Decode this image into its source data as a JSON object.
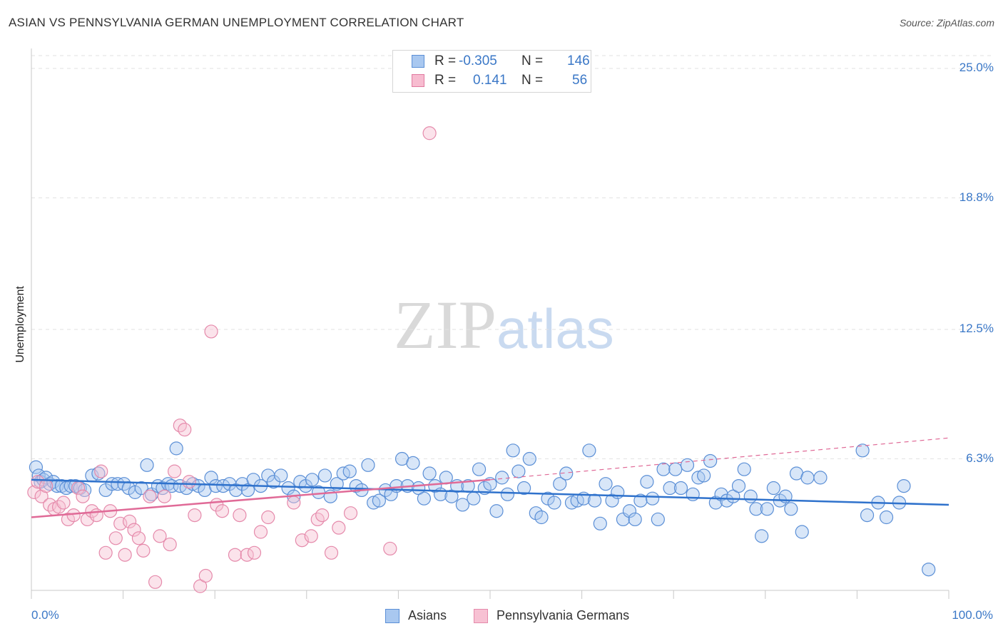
{
  "title": "ASIAN VS PENNSYLVANIA GERMAN UNEMPLOYMENT CORRELATION CHART",
  "source": "Source: ZipAtlas.com",
  "watermark": {
    "zip": "ZIP",
    "atlas": "atlas"
  },
  "legend_top": {
    "rows": [
      {
        "r_label": "R =",
        "r_value": "-0.305",
        "n_label": "N =",
        "n_value": "146",
        "color": "#a9c8f0",
        "border": "#5b8fd6"
      },
      {
        "r_label": "R =",
        "r_value": "0.141",
        "n_label": "N =",
        "n_value": "56",
        "color": "#f7bcd0",
        "border": "#e07aa0"
      }
    ]
  },
  "colors": {
    "asian_fill": "#a9c8f0",
    "asian_stroke": "#5b8fd6",
    "asian_line": "#2f72cc",
    "pg_fill": "#f7c1d3",
    "pg_stroke": "#e58aab",
    "pg_line": "#e06a97",
    "tick_text": "#3b78c7",
    "grid": "#e2e2e2"
  },
  "chart_data": {
    "type": "scatter",
    "title": "ASIAN VS PENNSYLVANIA GERMAN UNEMPLOYMENT CORRELATION CHART",
    "xlabel": "",
    "ylabel": "Unemployment",
    "xlim": [
      0,
      100
    ],
    "ylim": [
      0,
      26
    ],
    "x_ticks": [
      "0.0%",
      "100.0%"
    ],
    "y_ticks": [
      {
        "value": 6.3,
        "label": "6.3%"
      },
      {
        "value": 12.5,
        "label": "12.5%"
      },
      {
        "value": 18.8,
        "label": "18.8%"
      },
      {
        "value": 25.0,
        "label": "25.0%"
      }
    ],
    "grid": "horizontal dashed",
    "legend_position": "bottom-center",
    "series": [
      {
        "name": "Asians",
        "r": -0.305,
        "n": 146,
        "trend": {
          "x": [
            0,
            100
          ],
          "y": [
            5.3,
            4.1
          ]
        },
        "points": [
          [
            0.5,
            5.9
          ],
          [
            0.8,
            5.5
          ],
          [
            1.0,
            5.2
          ],
          [
            1.3,
            5.3
          ],
          [
            1.6,
            5.4
          ],
          [
            2.0,
            5.1
          ],
          [
            2.4,
            5.2
          ],
          [
            2.8,
            5.0
          ],
          [
            3.3,
            5.0
          ],
          [
            3.8,
            4.9
          ],
          [
            4.3,
            5.0
          ],
          [
            4.8,
            5.0
          ],
          [
            5.3,
            4.9
          ],
          [
            5.8,
            4.8
          ],
          [
            6.6,
            5.5
          ],
          [
            7.3,
            5.6
          ],
          [
            8.1,
            4.8
          ],
          [
            8.8,
            5.1
          ],
          [
            9.4,
            5.1
          ],
          [
            10.1,
            5.1
          ],
          [
            10.6,
            4.9
          ],
          [
            11.3,
            4.7
          ],
          [
            12.0,
            4.9
          ],
          [
            12.6,
            6.0
          ],
          [
            13.1,
            4.6
          ],
          [
            13.8,
            5.0
          ],
          [
            14.3,
            4.9
          ],
          [
            14.9,
            5.1
          ],
          [
            15.3,
            5.0
          ],
          [
            15.8,
            6.8
          ],
          [
            16.2,
            5.0
          ],
          [
            16.9,
            4.9
          ],
          [
            17.6,
            5.1
          ],
          [
            18.2,
            5.0
          ],
          [
            18.9,
            4.8
          ],
          [
            19.6,
            5.4
          ],
          [
            20.1,
            5.0
          ],
          [
            20.9,
            5.0
          ],
          [
            21.6,
            5.1
          ],
          [
            22.3,
            4.8
          ],
          [
            23.0,
            5.1
          ],
          [
            23.6,
            4.8
          ],
          [
            24.2,
            5.3
          ],
          [
            25.0,
            5.0
          ],
          [
            25.8,
            5.5
          ],
          [
            26.4,
            5.2
          ],
          [
            27.2,
            5.5
          ],
          [
            28.0,
            4.9
          ],
          [
            28.6,
            4.5
          ],
          [
            29.3,
            5.2
          ],
          [
            29.9,
            5.0
          ],
          [
            30.6,
            5.3
          ],
          [
            31.3,
            4.7
          ],
          [
            32.0,
            5.5
          ],
          [
            32.6,
            4.5
          ],
          [
            33.3,
            5.1
          ],
          [
            34.0,
            5.6
          ],
          [
            34.7,
            5.7
          ],
          [
            35.4,
            5.0
          ],
          [
            36.0,
            4.8
          ],
          [
            36.7,
            6.0
          ],
          [
            37.3,
            4.2
          ],
          [
            37.9,
            4.3
          ],
          [
            38.6,
            4.8
          ],
          [
            39.2,
            4.6
          ],
          [
            39.8,
            5.0
          ],
          [
            40.4,
            6.3
          ],
          [
            41.0,
            5.0
          ],
          [
            41.6,
            6.1
          ],
          [
            42.2,
            4.9
          ],
          [
            42.8,
            4.4
          ],
          [
            43.4,
            5.6
          ],
          [
            44.0,
            5.0
          ],
          [
            44.6,
            4.6
          ],
          [
            45.2,
            5.4
          ],
          [
            45.8,
            4.5
          ],
          [
            46.4,
            5.0
          ],
          [
            47.0,
            4.1
          ],
          [
            47.6,
            5.0
          ],
          [
            48.2,
            4.4
          ],
          [
            48.8,
            5.8
          ],
          [
            49.4,
            4.9
          ],
          [
            50.0,
            5.1
          ],
          [
            50.7,
            3.8
          ],
          [
            51.3,
            5.4
          ],
          [
            51.9,
            4.6
          ],
          [
            52.5,
            6.7
          ],
          [
            53.1,
            5.7
          ],
          [
            53.7,
            4.9
          ],
          [
            54.3,
            6.3
          ],
          [
            55.0,
            3.7
          ],
          [
            55.6,
            3.5
          ],
          [
            56.3,
            4.4
          ],
          [
            57.0,
            4.2
          ],
          [
            57.6,
            5.1
          ],
          [
            58.3,
            5.6
          ],
          [
            58.9,
            4.2
          ],
          [
            59.5,
            4.3
          ],
          [
            60.2,
            4.4
          ],
          [
            60.8,
            6.7
          ],
          [
            61.4,
            4.3
          ],
          [
            62.0,
            3.2
          ],
          [
            62.6,
            5.1
          ],
          [
            63.3,
            4.3
          ],
          [
            63.9,
            4.7
          ],
          [
            64.5,
            3.4
          ],
          [
            65.2,
            3.8
          ],
          [
            65.8,
            3.4
          ],
          [
            66.4,
            4.3
          ],
          [
            67.1,
            5.2
          ],
          [
            67.7,
            4.4
          ],
          [
            68.3,
            3.4
          ],
          [
            68.9,
            5.8
          ],
          [
            69.6,
            4.9
          ],
          [
            70.2,
            5.8
          ],
          [
            70.8,
            4.9
          ],
          [
            71.5,
            6.0
          ],
          [
            72.1,
            4.6
          ],
          [
            72.7,
            5.4
          ],
          [
            73.3,
            5.5
          ],
          [
            74.0,
            6.2
          ],
          [
            74.6,
            4.2
          ],
          [
            75.2,
            4.6
          ],
          [
            75.8,
            4.3
          ],
          [
            76.5,
            4.5
          ],
          [
            77.1,
            5.0
          ],
          [
            77.7,
            5.8
          ],
          [
            78.4,
            4.5
          ],
          [
            79.0,
            3.9
          ],
          [
            79.6,
            2.6
          ],
          [
            80.2,
            3.9
          ],
          [
            80.9,
            4.9
          ],
          [
            81.6,
            4.3
          ],
          [
            82.2,
            4.5
          ],
          [
            82.8,
            3.9
          ],
          [
            83.4,
            5.6
          ],
          [
            84.0,
            2.8
          ],
          [
            84.6,
            5.4
          ],
          [
            86.0,
            5.4
          ],
          [
            90.6,
            6.7
          ],
          [
            91.1,
            3.6
          ],
          [
            92.3,
            4.2
          ],
          [
            93.2,
            3.5
          ],
          [
            94.6,
            4.2
          ],
          [
            95.1,
            5.0
          ],
          [
            97.8,
            1.0
          ]
        ]
      },
      {
        "name": "Pennsylvania Germans",
        "r": 0.141,
        "n": 56,
        "trend": {
          "x": [
            0,
            50
          ],
          "y": [
            3.5,
            5.3
          ]
        },
        "trend_ext": {
          "x": [
            50,
            100
          ],
          "y": [
            5.3,
            7.3
          ]
        },
        "points": [
          [
            0.3,
            4.7
          ],
          [
            0.7,
            5.2
          ],
          [
            1.1,
            4.5
          ],
          [
            1.6,
            5.0
          ],
          [
            2.0,
            4.1
          ],
          [
            2.5,
            3.9
          ],
          [
            3.0,
            4.0
          ],
          [
            3.5,
            4.2
          ],
          [
            4.0,
            3.4
          ],
          [
            4.6,
            3.6
          ],
          [
            5.1,
            4.9
          ],
          [
            5.6,
            4.5
          ],
          [
            6.1,
            3.4
          ],
          [
            6.6,
            3.8
          ],
          [
            7.1,
            3.6
          ],
          [
            7.6,
            5.7
          ],
          [
            8.1,
            1.8
          ],
          [
            8.6,
            3.8
          ],
          [
            9.2,
            2.5
          ],
          [
            9.7,
            3.2
          ],
          [
            10.2,
            1.7
          ],
          [
            10.7,
            3.3
          ],
          [
            11.2,
            2.9
          ],
          [
            11.7,
            2.5
          ],
          [
            12.2,
            1.9
          ],
          [
            12.9,
            4.5
          ],
          [
            13.5,
            0.4
          ],
          [
            14.0,
            2.6
          ],
          [
            14.5,
            4.5
          ],
          [
            15.1,
            2.2
          ],
          [
            15.6,
            5.7
          ],
          [
            16.2,
            7.9
          ],
          [
            16.7,
            7.7
          ],
          [
            17.2,
            5.2
          ],
          [
            17.8,
            3.6
          ],
          [
            18.4,
            0.2
          ],
          [
            19.0,
            0.7
          ],
          [
            19.6,
            12.4
          ],
          [
            20.2,
            4.1
          ],
          [
            20.8,
            3.8
          ],
          [
            22.2,
            1.7
          ],
          [
            22.7,
            3.6
          ],
          [
            23.5,
            1.7
          ],
          [
            24.3,
            1.8
          ],
          [
            25.0,
            2.8
          ],
          [
            25.8,
            3.5
          ],
          [
            28.6,
            4.2
          ],
          [
            29.5,
            2.4
          ],
          [
            30.5,
            2.6
          ],
          [
            31.2,
            3.4
          ],
          [
            31.7,
            3.6
          ],
          [
            32.7,
            1.8
          ],
          [
            33.5,
            3.0
          ],
          [
            34.8,
            3.7
          ],
          [
            39.1,
            2.0
          ],
          [
            43.4,
            21.9
          ]
        ]
      }
    ]
  },
  "legend_bottom": [
    {
      "label": "Asians",
      "color": "#a9c8f0",
      "border": "#5b8fd6"
    },
    {
      "label": "Pennsylvania Germans",
      "color": "#f7c1d3",
      "border": "#e58aab"
    }
  ]
}
